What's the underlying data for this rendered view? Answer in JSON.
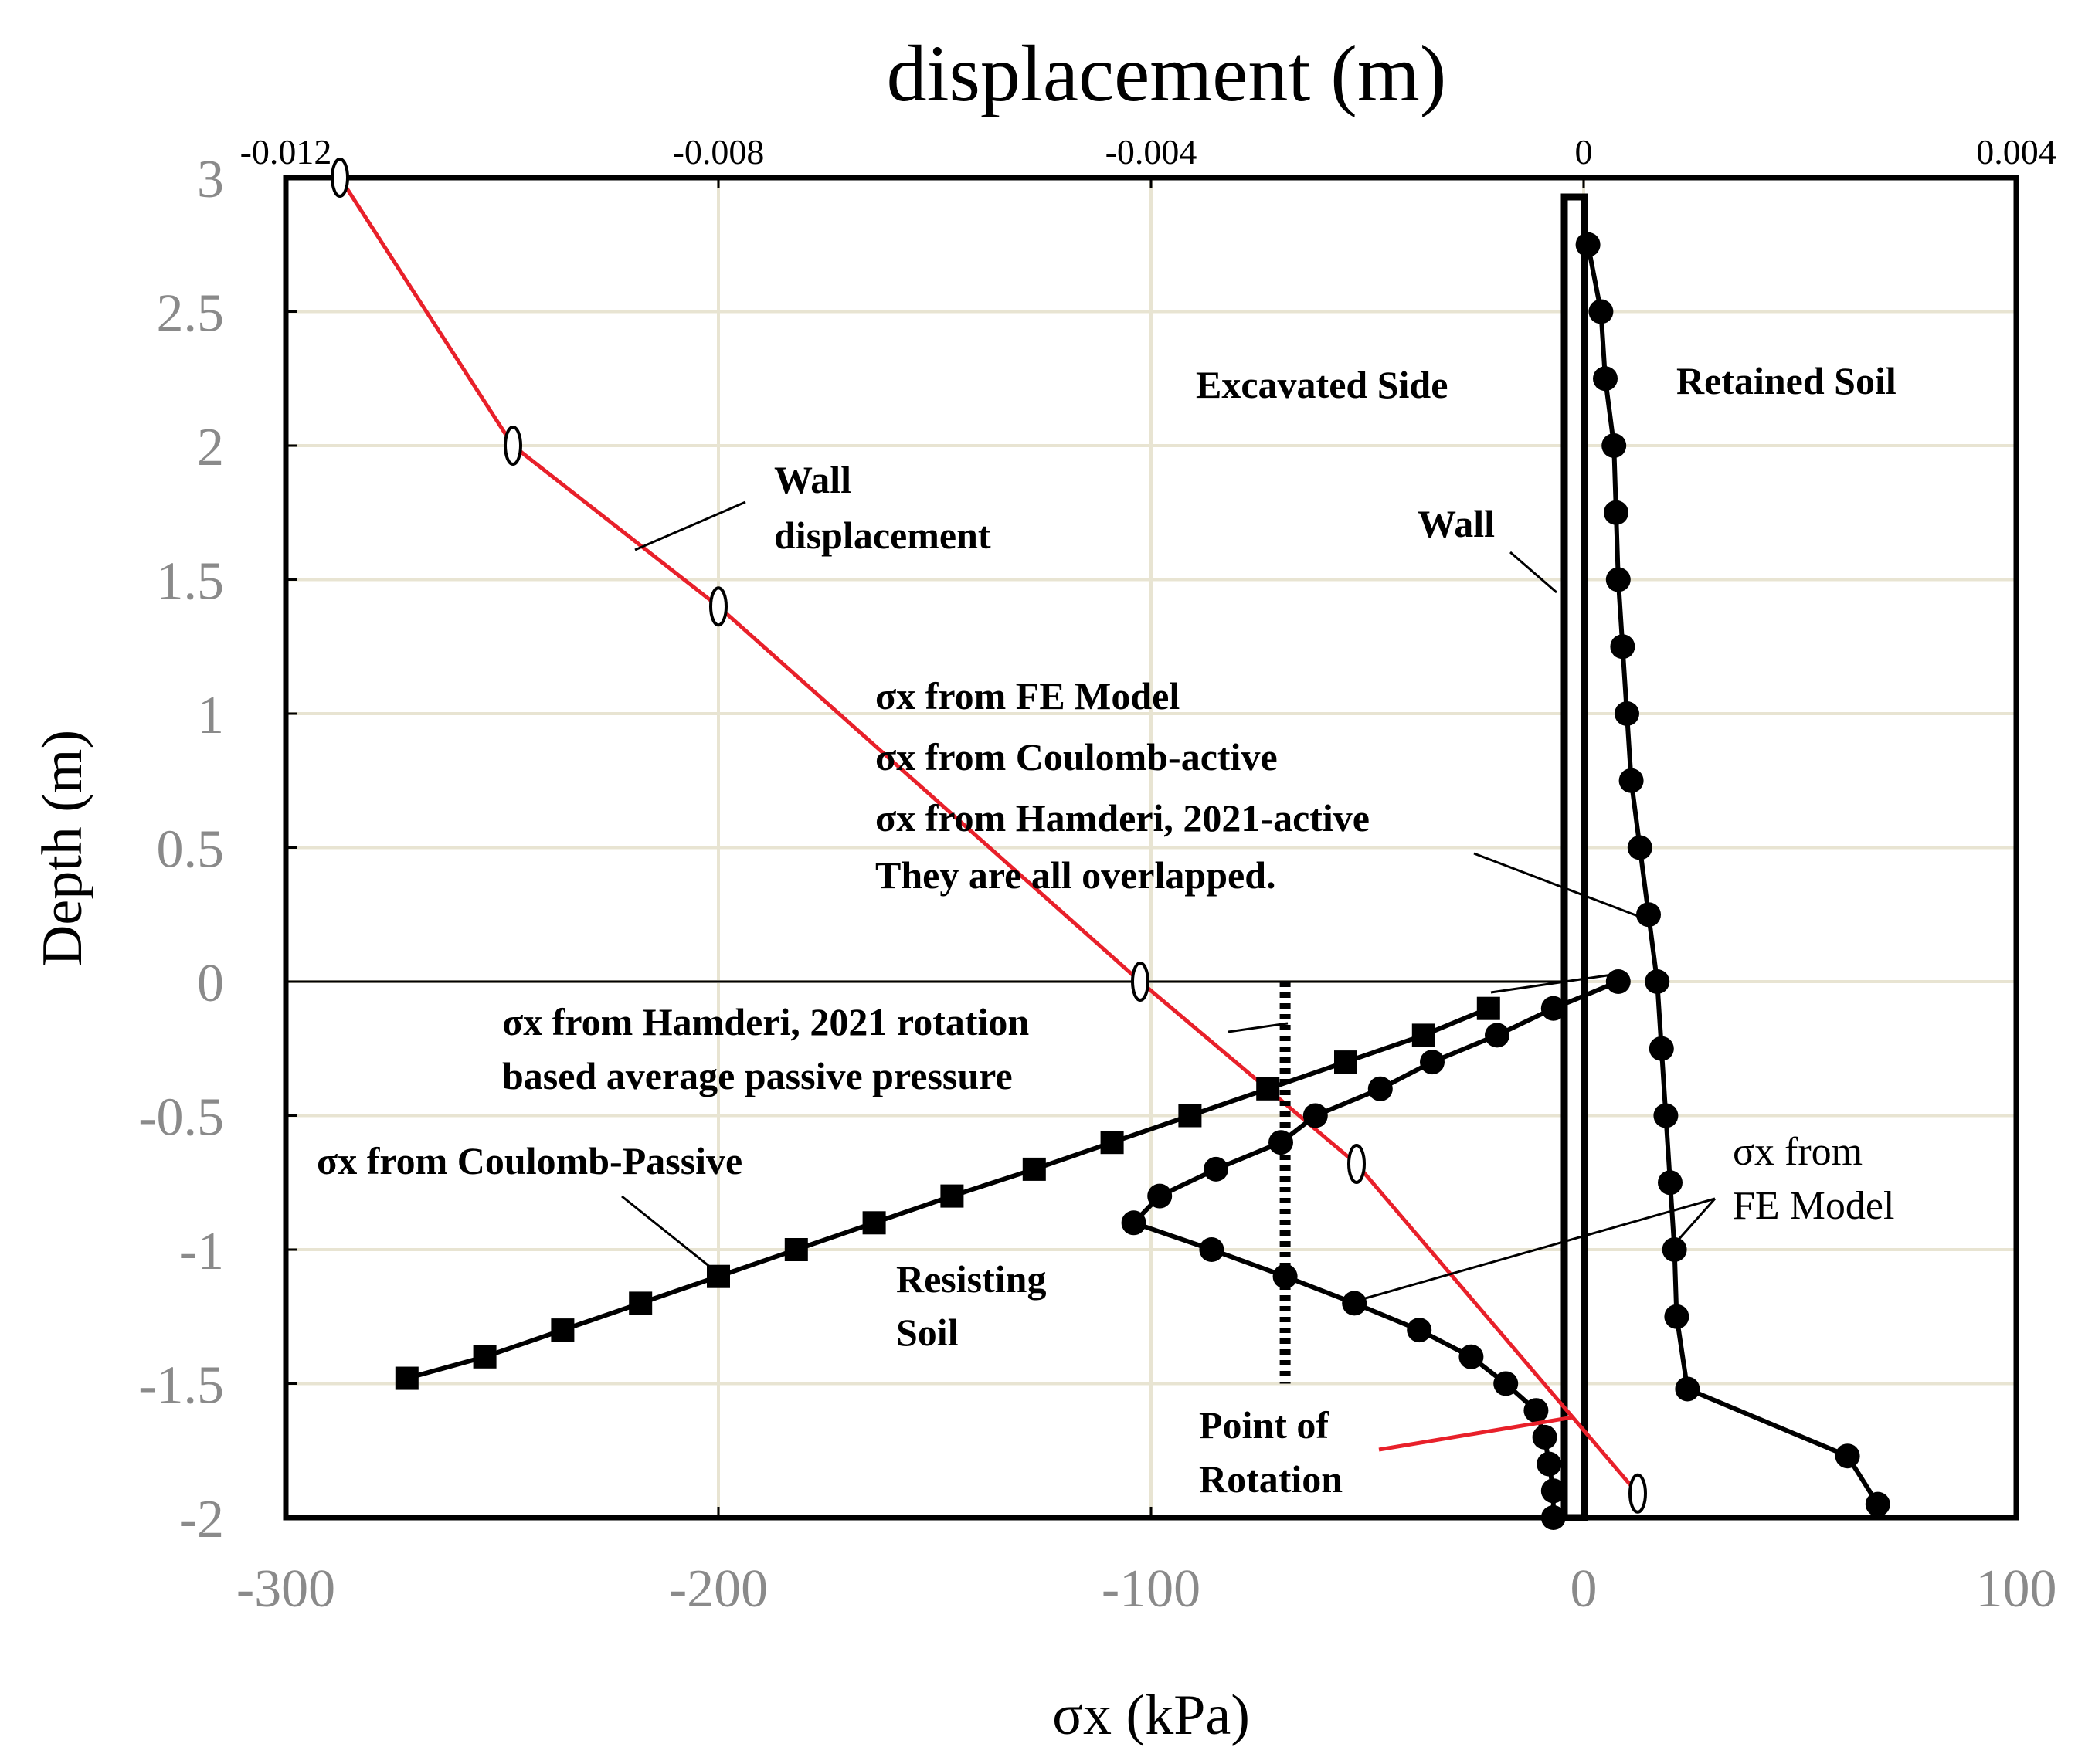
{
  "chart_data": {
    "type": "line",
    "title": "displacement (m)",
    "xlabel": "σx (kPa)",
    "ylabel": "Depth (m)",
    "xlim": [
      -300,
      100
    ],
    "ylim": [
      -2,
      3
    ],
    "x2lim": [
      -0.012,
      0.004
    ],
    "x_ticks": [
      "-300",
      "-200",
      "-100",
      "0",
      "100"
    ],
    "x_tick_values": [
      -300,
      -200,
      -100,
      0,
      100
    ],
    "x2_ticks": [
      "-0.012",
      "-0.008",
      "-0.004",
      "0",
      "0.004"
    ],
    "x2_tick_values": [
      -0.012,
      -0.008,
      -0.004,
      0,
      0.004
    ],
    "y_ticks": [
      "3",
      "2.5",
      "2",
      "1.5",
      "1",
      "0.5",
      "0",
      "-0.5",
      "-1",
      "-1.5",
      "-2"
    ],
    "y_tick_values": [
      3,
      2.5,
      2,
      1.5,
      1,
      0.5,
      0,
      -0.5,
      -1,
      -1.5,
      -2
    ],
    "grid": true,
    "colors": {
      "displacement": "#e8202a",
      "grid": "#e8e4d2",
      "series": "#000000"
    },
    "series": [
      {
        "name": "Wall displacement",
        "axis": "top",
        "marker": "open-oval",
        "color": "#e8202a",
        "points": [
          [
            -0.0115,
            3.0
          ],
          [
            -0.0099,
            2.0
          ],
          [
            -0.008,
            1.4
          ],
          [
            -0.0041,
            0.0
          ],
          [
            -0.0021,
            -0.68
          ],
          [
            0.0005,
            -1.91
          ]
        ]
      },
      {
        "name": "σx from FE Model / Coulomb-active / Hamderi, 2021-active (retained soil)",
        "axis": "bottom",
        "marker": "circle",
        "points": [
          [
            1,
            2.75
          ],
          [
            4,
            2.5
          ],
          [
            5,
            2.25
          ],
          [
            7,
            2.0
          ],
          [
            7.5,
            1.75
          ],
          [
            8,
            1.5
          ],
          [
            9,
            1.25
          ],
          [
            10,
            1.0
          ],
          [
            11,
            0.75
          ],
          [
            13,
            0.5
          ],
          [
            15,
            0.25
          ],
          [
            17,
            0.0
          ],
          [
            18,
            -0.25
          ],
          [
            19,
            -0.5
          ],
          [
            20,
            -0.75
          ],
          [
            21,
            -1.0
          ],
          [
            21.5,
            -1.25
          ],
          [
            24,
            -1.52
          ],
          [
            61,
            -1.77
          ],
          [
            68,
            -1.95
          ]
        ]
      },
      {
        "name": "σx from FE Model (resisting soil)",
        "axis": "bottom",
        "marker": "circle",
        "points": [
          [
            8,
            0.0
          ],
          [
            -7,
            -0.1
          ],
          [
            -20,
            -0.2
          ],
          [
            -35,
            -0.3
          ],
          [
            -47,
            -0.4
          ],
          [
            -62,
            -0.5
          ],
          [
            -70,
            -0.6
          ],
          [
            -85,
            -0.7
          ],
          [
            -98,
            -0.8
          ],
          [
            -104,
            -0.9
          ],
          [
            -86,
            -1.0
          ],
          [
            -69,
            -1.1
          ],
          [
            -53,
            -1.2
          ],
          [
            -38,
            -1.3
          ],
          [
            -26,
            -1.4
          ],
          [
            -18,
            -1.5
          ],
          [
            -11,
            -1.6
          ],
          [
            -9,
            -1.7
          ],
          [
            -8,
            -1.8
          ],
          [
            -7,
            -1.9
          ],
          [
            -7,
            -2.0
          ]
        ]
      },
      {
        "name": "σx from Coulomb-Passive",
        "axis": "bottom",
        "marker": "square",
        "points": [
          [
            -22,
            -0.1
          ],
          [
            -37,
            -0.2
          ],
          [
            -55,
            -0.3
          ],
          [
            -73,
            -0.4
          ],
          [
            -91,
            -0.5
          ],
          [
            -109,
            -0.6
          ],
          [
            -127,
            -0.7
          ],
          [
            -146,
            -0.8
          ],
          [
            -164,
            -0.9
          ],
          [
            -182,
            -1.0
          ],
          [
            -200,
            -1.1
          ],
          [
            -218,
            -1.2
          ],
          [
            -236,
            -1.3
          ],
          [
            -254,
            -1.4
          ],
          [
            -272,
            -1.48
          ]
        ]
      },
      {
        "name": "σx from Hamderi, 2021 rotation based average passive pressure",
        "axis": "bottom",
        "marker": "dashed-vertical",
        "points": [
          [
            -69,
            0.0
          ],
          [
            -69,
            -1.5
          ]
        ]
      }
    ],
    "annotations": {
      "excavated": "Excavated Side",
      "retained": "Retained Soil",
      "wall": "Wall",
      "wall_disp_1": "Wall",
      "wall_disp_2": "displacement",
      "fe_1": "σx from FE Model",
      "fe_2": "σx from Coulomb-active",
      "fe_3": "σx from Hamderi, 2021-active",
      "fe_4": "They are all overlapped.",
      "ham_1": "σx from Hamderi, 2021 rotation",
      "ham_2": "based average passive pressure",
      "coulomb_passive": "σx from Coulomb-Passive",
      "resisting_1": "Resisting",
      "resisting_2": "Soil",
      "rotation_1": "Point of",
      "rotation_2": "Rotation",
      "fe_right_1": "σx from",
      "fe_right_2": "FE Model"
    }
  }
}
